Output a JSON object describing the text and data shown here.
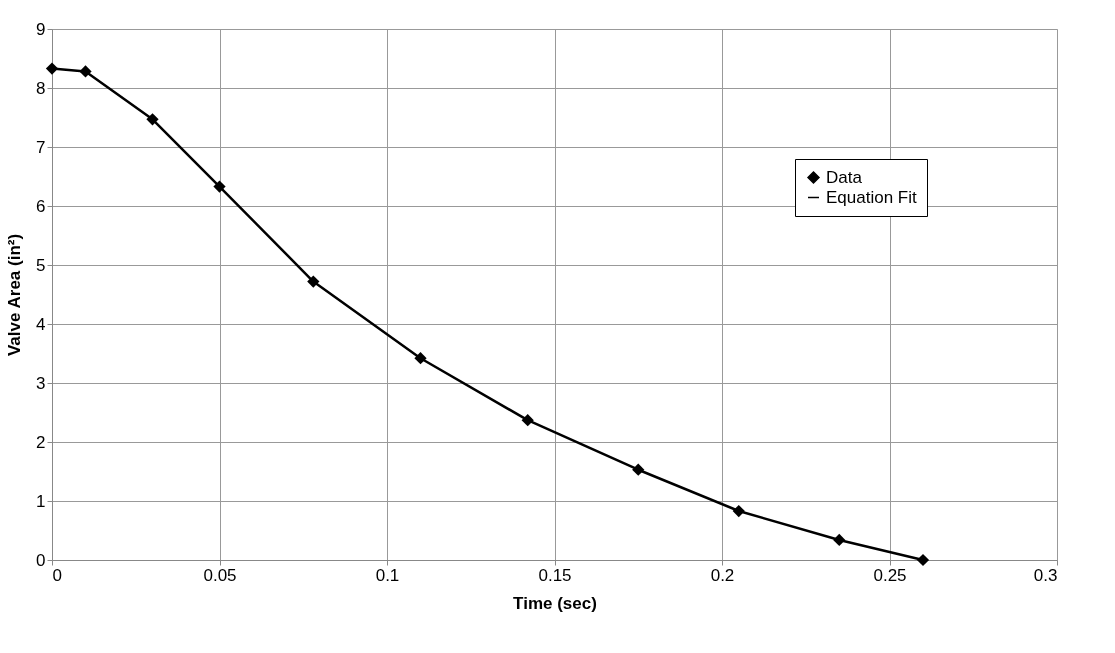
{
  "chart_data": {
    "type": "scatter",
    "xlabel": "Time (sec)",
    "ylabel": "Valve Area (in²)",
    "xlim": [
      0,
      0.3
    ],
    "xticks": [
      0,
      0.05,
      0.1,
      0.15,
      0.2,
      0.25,
      0.3
    ],
    "ylim": [
      0,
      9
    ],
    "yticks": [
      0,
      1,
      2,
      3,
      4,
      5,
      6,
      7,
      8,
      9
    ],
    "grid": true,
    "legend": "top right",
    "series": [
      {
        "name": "Data",
        "type": "scatter",
        "marker": "diamond",
        "color": "#000000",
        "x": [
          0,
          0.01,
          0.03,
          0.05,
          0.078,
          0.11,
          0.142,
          0.175,
          0.205,
          0.235,
          0.26
        ],
        "values": [
          8.33,
          8.28,
          7.47,
          6.33,
          4.72,
          3.42,
          2.37,
          1.53,
          0.83,
          0.34,
          0
        ]
      },
      {
        "name": "Equation Fit",
        "type": "line",
        "marker": "none",
        "line_style": "solid",
        "color": "#000000",
        "x": [
          0,
          0.01,
          0.03,
          0.05,
          0.078,
          0.11,
          0.142,
          0.175,
          0.205,
          0.235,
          0.26
        ],
        "values": [
          8.33,
          8.28,
          7.47,
          6.33,
          4.72,
          3.42,
          2.37,
          1.53,
          0.83,
          0.34,
          0
        ]
      }
    ]
  }
}
